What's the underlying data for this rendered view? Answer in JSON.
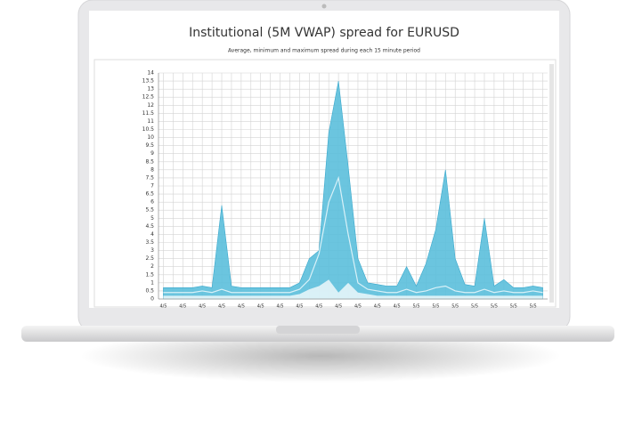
{
  "chart_data": {
    "type": "area",
    "title": "Institutional (5M VWAP) spread for EURUSD",
    "subtitle": "Average, minimum and maximum spread during each 15 minute period",
    "categories": [
      "4/5",
      null,
      "4/5",
      null,
      "4/5",
      null,
      "4/5",
      null,
      "4/5",
      null,
      "4/5",
      null,
      "4/5",
      null,
      "4/5",
      null,
      "4/5",
      null,
      "4/5",
      null,
      "4/5",
      null,
      "4/5",
      null,
      "4/5",
      null,
      "5/5",
      null,
      "5/5",
      null,
      "5/5",
      null,
      "5/5",
      null,
      "5/5",
      null,
      "5/5",
      null,
      "5/5",
      null
    ],
    "series": [
      {
        "color": "#5bbfdc",
        "values": [
          0.7,
          0.7,
          0.7,
          0.7,
          0.8,
          0.7,
          5.8,
          0.8,
          0.7,
          0.7,
          0.7,
          0.7,
          0.7,
          0.7,
          1,
          2.5,
          3,
          10.3,
          13.5,
          8.2,
          2.5,
          1,
          0.9,
          0.8,
          0.8,
          2,
          0.8,
          2.2,
          4.3,
          8,
          2.5,
          0.9,
          0.8,
          5,
          0.8,
          1.2,
          0.7,
          0.7,
          0.8,
          0.7
        ]
      },
      {
        "color": "#ffffff",
        "values": [
          0.2,
          0.2,
          0.2,
          0.2,
          0.2,
          0.2,
          0.2,
          0.2,
          0.2,
          0.2,
          0.2,
          0.2,
          0.2,
          0.2,
          0.3,
          0.6,
          0.8,
          1.2,
          0.4,
          1,
          0.4,
          0.3,
          0.2,
          0.2,
          0.2,
          0.2,
          0.2,
          0.2,
          0.2,
          0.2,
          0.2,
          0.2,
          0.2,
          0.2,
          0.2,
          0.2,
          0.2,
          0.2,
          0.2,
          0.2
        ]
      },
      {
        "color": "#d9f1f8",
        "values": [
          0.4,
          0.4,
          0.4,
          0.4,
          0.5,
          0.4,
          0.6,
          0.4,
          0.4,
          0.4,
          0.4,
          0.4,
          0.4,
          0.4,
          0.6,
          1.2,
          2.8,
          6,
          7.5,
          4,
          1,
          0.6,
          0.5,
          0.4,
          0.4,
          0.6,
          0.4,
          0.5,
          0.7,
          0.8,
          0.5,
          0.4,
          0.4,
          0.6,
          0.4,
          0.5,
          0.4,
          0.4,
          0.5,
          0.4
        ]
      }
    ],
    "ylim": [
      0,
      14
    ],
    "yticks": [
      0,
      0.5,
      1,
      1.5,
      2,
      2.5,
      3,
      3.5,
      4,
      4.5,
      5,
      5.5,
      6,
      6.5,
      7,
      7.5,
      8,
      8.5,
      9,
      9.5,
      10,
      10.5,
      11,
      11.5,
      12,
      12.5,
      13,
      13.5,
      14
    ],
    "grid": true
  }
}
